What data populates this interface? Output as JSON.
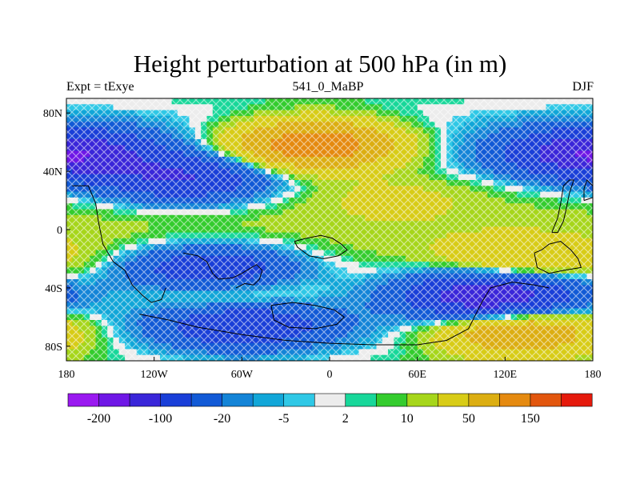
{
  "chart_data": {
    "type": "heatmap",
    "title": "Height perturbation at 500 hPa (in m)",
    "subtitle_left": "Expt = tExye",
    "subtitle_center": "541_0_MaBP",
    "subtitle_right": "DJF",
    "units": "m",
    "x_ticks": [
      "180",
      "120W",
      "60W",
      "0",
      "60E",
      "120E",
      "180"
    ],
    "x_tick_values": [
      -180,
      -120,
      -60,
      0,
      60,
      120,
      180
    ],
    "y_ticks": [
      "80N",
      "40N",
      "0",
      "40S",
      "80S"
    ],
    "y_tick_values": [
      80,
      40,
      0,
      -40,
      -80
    ],
    "xlim": [
      -180,
      180
    ],
    "ylim": [
      -90,
      90
    ],
    "colorbar": {
      "labels": [
        "-200",
        "-100",
        "-20",
        "-5",
        "2",
        "10",
        "50",
        "150"
      ],
      "levels": [
        -250,
        -200,
        -150,
        -100,
        -50,
        -20,
        -10,
        -5,
        -2,
        2,
        5,
        10,
        20,
        50,
        100,
        150,
        200,
        250
      ],
      "colors": [
        "#9a19f0",
        "#6f17e6",
        "#3a26d9",
        "#1a3fd8",
        "#125ad6",
        "#1484d7",
        "#11a6d8",
        "#2fc8e6",
        "#ececec",
        "#18d79a",
        "#34cc2e",
        "#a6d61b",
        "#d8cc17",
        "#dcae12",
        "#e58a10",
        "#e2560e",
        "#e51a0c"
      ]
    },
    "features": [
      {
        "type": "max",
        "lon": -10,
        "lat": 58,
        "value": 150
      },
      {
        "type": "min",
        "lon": 180,
        "lat": 52,
        "value": -150
      },
      {
        "type": "min",
        "lon": -100,
        "lat": 35,
        "value": -100
      },
      {
        "type": "max",
        "lon": 45,
        "lat": 22,
        "value": 20
      },
      {
        "type": "min",
        "lon": -80,
        "lat": -28,
        "value": -100
      },
      {
        "type": "max",
        "lon": -70,
        "lat": -45,
        "value": 50
      },
      {
        "type": "min",
        "lon": 110,
        "lat": -45,
        "value": -150
      },
      {
        "type": "max",
        "lon": 130,
        "lat": -22,
        "value": 50
      },
      {
        "type": "max",
        "lon": 130,
        "lat": -70,
        "value": 100
      },
      {
        "type": "min",
        "lon": -60,
        "lat": -65,
        "value": -100
      }
    ]
  }
}
